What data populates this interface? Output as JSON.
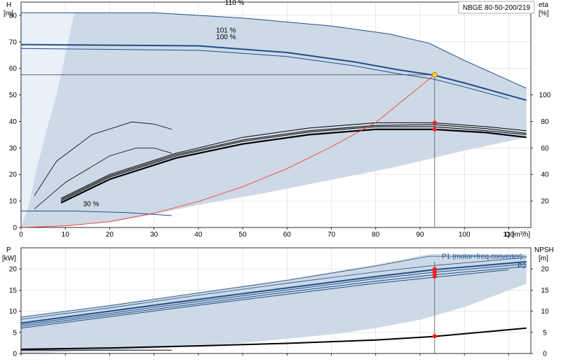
{
  "title": "NBGE 80-50-200/219",
  "colors": {
    "region_fill": "#cdd9e6",
    "region_light": "#e8f0f8",
    "curve_blue": "#1f4e8c",
    "curve_black": "#000000",
    "system_curve": "#ff2a1a",
    "duty_point": "#ffcc33",
    "marker_red": "#ff2020",
    "grid": "#d8d8d8"
  },
  "chart_data": [
    {
      "type": "line",
      "name": "pump-curves",
      "ylabel": "H",
      "yunit": "[m]",
      "y2label": "eta",
      "y2unit": "[%]",
      "xlabel": "Q [m³/h]",
      "xlim": [
        0,
        115
      ],
      "ylim": [
        0,
        85
      ],
      "y2lim": [
        0,
        170
      ],
      "xticks": [
        0,
        10,
        20,
        30,
        40,
        50,
        60,
        70,
        80,
        90,
        100,
        110
      ],
      "yticks": [
        0,
        10,
        20,
        30,
        40,
        50,
        60,
        70,
        80
      ],
      "y2ticks": [
        20,
        40,
        60,
        80,
        100
      ],
      "envelope": {
        "upper": [
          [
            0,
            81
          ],
          [
            12,
            81
          ],
          [
            30,
            81
          ],
          [
            50,
            79
          ],
          [
            70,
            76
          ],
          [
            83,
            73
          ],
          [
            92,
            69.5
          ],
          [
            100,
            63
          ],
          [
            114,
            52.5
          ]
        ],
        "lower": [
          [
            114,
            34
          ],
          [
            100,
            29
          ],
          [
            85,
            23
          ],
          [
            70,
            18
          ],
          [
            55,
            13
          ],
          [
            40,
            8.5
          ],
          [
            30,
            5
          ],
          [
            20,
            2
          ],
          [
            10,
            0.5
          ],
          [
            3,
            0
          ],
          [
            0,
            0
          ]
        ]
      },
      "light_band": {
        "upper": [
          [
            0,
            81
          ],
          [
            12,
            81
          ],
          [
            10,
            65
          ],
          [
            8,
            50
          ],
          [
            5.5,
            35
          ],
          [
            3.5,
            22
          ],
          [
            2,
            10
          ],
          [
            0.5,
            2
          ],
          [
            0,
            0
          ]
        ]
      },
      "head_curves": [
        {
          "label": "110 %",
          "label_at": [
            46,
            84
          ],
          "points": [
            [
              0,
              81
            ],
            [
              30,
              81
            ],
            [
              50,
              79
            ],
            [
              70,
              76
            ],
            [
              83,
              73
            ],
            [
              92,
              69.5
            ],
            [
              100,
              63
            ],
            [
              114,
              52.5
            ]
          ],
          "width": 1.0
        },
        {
          "label": "101 %",
          "label_at": [
            44,
            73.5
          ],
          "points": [
            [
              0,
              69
            ],
            [
              40,
              68.5
            ],
            [
              60,
              66
            ],
            [
              75,
              62.5
            ],
            [
              85,
              59.5
            ],
            [
              93,
              57.5
            ],
            [
              100,
              54.5
            ],
            [
              114,
              48
            ]
          ],
          "width": 2.0
        },
        {
          "label": "100 %",
          "label_at": [
            44,
            71
          ],
          "points": [
            [
              0,
              67.5
            ],
            [
              40,
              66.8
            ],
            [
              60,
              64.5
            ],
            [
              75,
              61
            ],
            [
              85,
              58
            ],
            [
              93,
              56
            ],
            [
              100,
              53
            ],
            [
              110,
              48.5
            ]
          ],
          "width": 1.0
        },
        {
          "label": "30 %",
          "label_at": [
            14,
            8
          ],
          "points": [
            [
              0,
              6.2
            ],
            [
              12,
              6.2
            ],
            [
              24,
              5.6
            ],
            [
              34,
              4.5
            ]
          ],
          "width": 1.0
        }
      ],
      "eff_curves": [
        {
          "points": [
            [
              3,
              12
            ],
            [
              8,
              25
            ],
            [
              16,
              35
            ],
            [
              25,
              39.8
            ],
            [
              30,
              39
            ],
            [
              34,
              37
            ]
          ],
          "width": 0.8
        },
        {
          "points": [
            [
              3,
              7
            ],
            [
              10,
              17
            ],
            [
              20,
              27
            ],
            [
              26,
              30
            ],
            [
              30,
              30
            ],
            [
              34,
              28
            ]
          ],
          "width": 0.8
        },
        {
          "points": [
            [
              9,
              11
            ],
            [
              20,
              20
            ],
            [
              35,
              28
            ],
            [
              50,
              34
            ],
            [
              65,
              37.5
            ],
            [
              80,
              39.5
            ],
            [
              93,
              39.5
            ],
            [
              105,
              38
            ],
            [
              114,
              36.5
            ]
          ],
          "width": 1.0
        },
        {
          "points": [
            [
              9,
              10.5
            ],
            [
              20,
              19.5
            ],
            [
              35,
              27.5
            ],
            [
              50,
              33
            ],
            [
              65,
              36.5
            ],
            [
              80,
              38.5
            ],
            [
              93,
              38.8
            ],
            [
              105,
              37.3
            ],
            [
              114,
              35.5
            ]
          ],
          "width": 1.0
        },
        {
          "points": [
            [
              9,
              10
            ],
            [
              20,
              19
            ],
            [
              35,
              27
            ],
            [
              50,
              32.5
            ],
            [
              65,
              36
            ],
            [
              80,
              38
            ],
            [
              93,
              38
            ],
            [
              105,
              36.5
            ],
            [
              114,
              35
            ]
          ],
          "width": 1.0
        },
        {
          "points": [
            [
              9,
              9.3
            ],
            [
              20,
              18.2
            ],
            [
              35,
              26.2
            ],
            [
              50,
              31.5
            ],
            [
              65,
              35
            ],
            [
              80,
              37
            ],
            [
              93,
              37
            ],
            [
              105,
              35.8
            ],
            [
              114,
              34
            ]
          ],
          "width": 2.2
        }
      ],
      "system_curve": [
        [
          0,
          0
        ],
        [
          10,
          0.6
        ],
        [
          20,
          2.2
        ],
        [
          30,
          5.4
        ],
        [
          40,
          9.8
        ],
        [
          50,
          15.4
        ],
        [
          60,
          22.2
        ],
        [
          70,
          30.4
        ],
        [
          80,
          39.6
        ],
        [
          93.3,
          57.6
        ]
      ],
      "duty_point": {
        "q": 93.3,
        "h": 57.6
      },
      "red_markers": [
        [
          93.3,
          39.5
        ],
        [
          93.3,
          37
        ]
      ]
    },
    {
      "type": "line",
      "name": "power-npsh",
      "ylabel": "P",
      "yunit": "[kW]",
      "y2label": "NPSH",
      "y2unit": "[m]",
      "xlim": [
        0,
        115
      ],
      "ylim": [
        0,
        25
      ],
      "y2lim": [
        0,
        25
      ],
      "yticks": [
        0,
        5,
        10,
        15,
        20
      ],
      "y2ticks": [
        0,
        5,
        10,
        15,
        20
      ],
      "series_labels": [
        {
          "text": "P1 (motor+freq.converter)",
          "at": [
            104,
            22.4
          ]
        },
        {
          "text": "P2",
          "at": [
            113,
            20.2
          ]
        }
      ],
      "envelope": {
        "upper": [
          [
            0,
            8.8
          ],
          [
            20,
            11.5
          ],
          [
            40,
            14.5
          ],
          [
            60,
            17.5
          ],
          [
            80,
            21
          ],
          [
            92,
            23.5
          ],
          [
            100,
            23.5
          ],
          [
            114,
            23.5
          ]
        ],
        "lower": [
          [
            114,
            16.5
          ],
          [
            100,
            11
          ],
          [
            90,
            8
          ],
          [
            80,
            6
          ],
          [
            70,
            4.5
          ],
          [
            60,
            3.5
          ],
          [
            50,
            2.5
          ],
          [
            40,
            1.8
          ],
          [
            30,
            1.2
          ],
          [
            20,
            0.8
          ],
          [
            10,
            0.4
          ],
          [
            3,
            0
          ],
          [
            0,
            0
          ]
        ]
      },
      "power_curves": [
        {
          "points": [
            [
              0,
              8.6
            ],
            [
              20,
              11.3
            ],
            [
              40,
              14.3
            ],
            [
              60,
              17.3
            ],
            [
              80,
              20.7
            ],
            [
              92,
              23
            ],
            [
              114,
              23
            ]
          ],
          "width": 0.8
        },
        {
          "points": [
            [
              0,
              8.1
            ],
            [
              20,
              10.8
            ],
            [
              40,
              13.8
            ],
            [
              60,
              16.6
            ],
            [
              80,
              19.3
            ],
            [
              93,
              20.8
            ],
            [
              114,
              22.7
            ]
          ],
          "width": 0.8
        },
        {
          "points": [
            [
              0,
              7.2
            ],
            [
              20,
              10
            ],
            [
              40,
              12.8
            ],
            [
              60,
              15.5
            ],
            [
              80,
              18.2
            ],
            [
              93,
              19.8
            ],
            [
              114,
              21.7
            ]
          ],
          "width": 2.0
        },
        {
          "points": [
            [
              0,
              6.8
            ],
            [
              20,
              9.5
            ],
            [
              40,
              12.3
            ],
            [
              60,
              15
            ],
            [
              80,
              17.7
            ],
            [
              93,
              19.2
            ],
            [
              114,
              21.2
            ]
          ],
          "width": 1.0
        },
        {
          "points": [
            [
              0,
              6.4
            ],
            [
              20,
              9.1
            ],
            [
              40,
              11.8
            ],
            [
              60,
              14.5
            ],
            [
              80,
              17.1
            ],
            [
              93,
              18.6
            ],
            [
              114,
              20.6
            ]
          ],
          "width": 1.0
        },
        {
          "points": [
            [
              0,
              6
            ],
            [
              20,
              8.7
            ],
            [
              40,
              11.4
            ],
            [
              60,
              14
            ],
            [
              80,
              16.6
            ],
            [
              93,
              18
            ],
            [
              110,
              19.8
            ]
          ],
          "width": 1.0
        }
      ],
      "npsh_curves": [
        {
          "points": [
            [
              0,
              1
            ],
            [
              20,
              1.3
            ],
            [
              40,
              1.8
            ],
            [
              60,
              2.4
            ],
            [
              80,
              3.2
            ],
            [
              93,
              4
            ],
            [
              114,
              6
            ]
          ],
          "width": 2.0
        },
        {
          "points": [
            [
              0,
              0.8
            ],
            [
              34,
              0.8
            ]
          ],
          "width": 1.0
        }
      ],
      "red_markers": [
        [
          93.3,
          20
        ],
        [
          93.3,
          19.4
        ],
        [
          93.3,
          18.8
        ],
        [
          93.3,
          18.2
        ],
        [
          93.3,
          4.1
        ]
      ]
    }
  ]
}
